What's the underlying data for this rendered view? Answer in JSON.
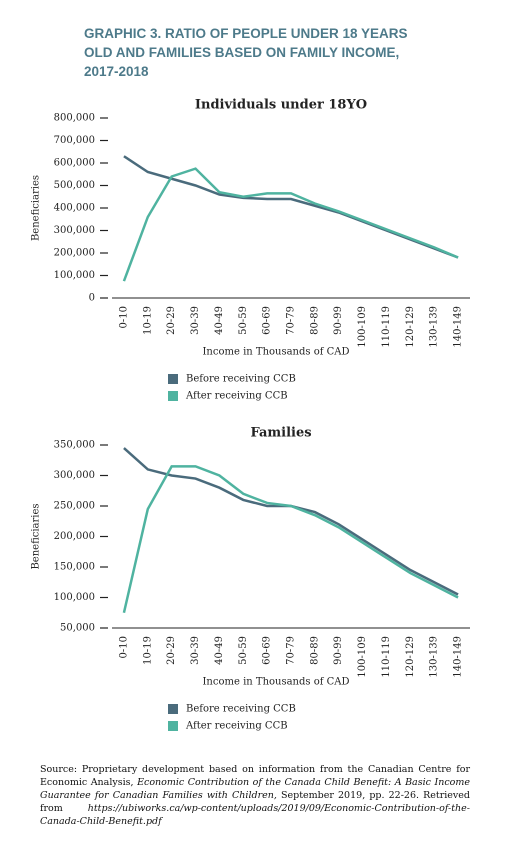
{
  "header": {
    "title": "GRAPHIC 3. RATIO OF PEOPLE UNDER 18 YEARS OLD AND FAMILIES BASED ON FAMILY INCOME, 2017-2018"
  },
  "chart_data": [
    {
      "type": "line",
      "title": "Individuals under 18YO",
      "x_label": "Income in Thousands of CAD",
      "y_label": "Beneficiaries",
      "categories": [
        "0-10",
        "10-19",
        "20-29",
        "30-39",
        "40-49",
        "50-59",
        "60-69",
        "70-79",
        "80-89",
        "90-99",
        "100-109",
        "110-119",
        "120-129",
        "130-139",
        "140-149"
      ],
      "series": [
        {
          "name": "Before receiving CCB",
          "color": "#4a6b7c",
          "values": [
            630000,
            560000,
            530000,
            500000,
            460000,
            445000,
            440000,
            440000,
            410000,
            380000,
            340000,
            300000,
            260000,
            220000,
            180000
          ]
        },
        {
          "name": "After receiving CCB",
          "color": "#4fb3a0",
          "values": [
            75000,
            360000,
            540000,
            575000,
            470000,
            450000,
            465000,
            465000,
            420000,
            385000,
            345000,
            305000,
            265000,
            225000,
            180000
          ]
        }
      ],
      "ylim": [
        0,
        800000
      ],
      "yticks": [
        0,
        {
          "value": 100000,
          "label": "100,000"
        },
        {
          "value": 200000,
          "label": "200,000"
        },
        {
          "value": 300000,
          "label": "300,000"
        },
        {
          "value": 400000,
          "label": "400,000"
        },
        {
          "value": 500000,
          "label": "500,000"
        },
        {
          "value": 600000,
          "label": "600,000"
        },
        {
          "value": 700000,
          "label": "700,000"
        },
        {
          "value": 800000,
          "label": "800,000"
        }
      ]
    },
    {
      "type": "line",
      "title": "Families",
      "x_label": "Income in Thousands of CAD",
      "y_label": "Beneficiaries",
      "categories": [
        "0-10",
        "10-19",
        "20-29",
        "30-39",
        "40-49",
        "50-59",
        "60-69",
        "70-79",
        "80-89",
        "90-99",
        "100-109",
        "110-119",
        "120-129",
        "130-139",
        "140-149"
      ],
      "series": [
        {
          "name": "Before receiving CCB",
          "color": "#4a6b7c",
          "values": [
            345000,
            310000,
            300000,
            295000,
            280000,
            260000,
            250000,
            250000,
            240000,
            220000,
            195000,
            170000,
            145000,
            125000,
            105000
          ]
        },
        {
          "name": "After receiving CCB",
          "color": "#4fb3a0",
          "values": [
            75000,
            245000,
            315000,
            315000,
            300000,
            270000,
            255000,
            250000,
            235000,
            215000,
            190000,
            165000,
            140000,
            120000,
            100000
          ]
        }
      ],
      "ylim": [
        50000,
        350000
      ],
      "yticks": [
        {
          "value": 50000,
          "label": "50,000"
        },
        {
          "value": 100000,
          "label": "100,000"
        },
        {
          "value": 150000,
          "label": "150,000"
        },
        {
          "value": 200000,
          "label": "200,000"
        },
        {
          "value": 250000,
          "label": "250,000"
        },
        {
          "value": 300000,
          "label": "300,000"
        },
        {
          "value": 350000,
          "label": "350,000"
        }
      ]
    }
  ],
  "source": [
    "Source: Proprietary development based on information from the Canadian Centre for Economic Analysis, ",
    "Economic Contribution of the Canada Child Benefit: A Basic Income Guarantee for Canadian Families with Children,",
    " September 2019, pp. 22-26. Retrieved from ",
    "https://ubiworks.ca/wp-content/uploads/2019/09/Economic-Contribution-of-the-Canada-Child-Benefit.pdf"
  ]
}
